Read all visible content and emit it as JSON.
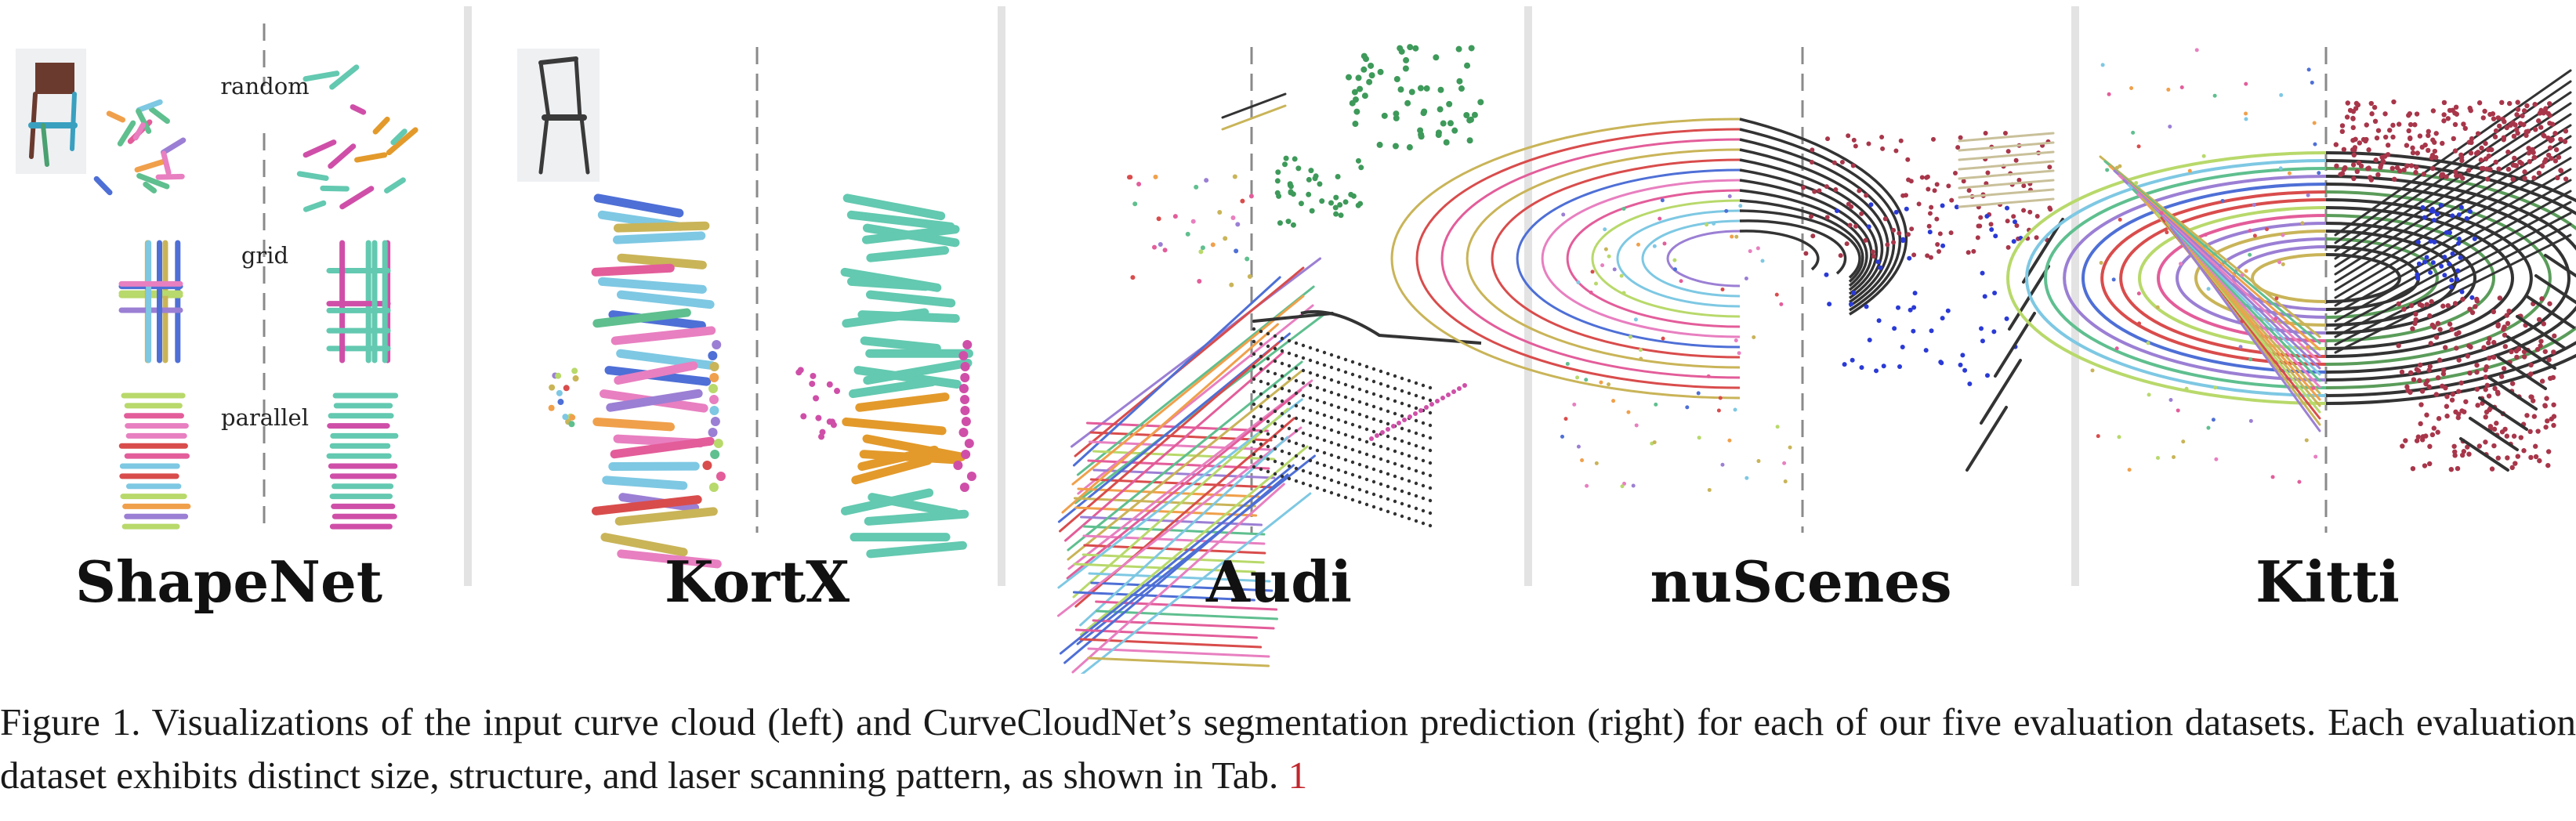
{
  "figure": {
    "datasets": [
      {
        "key": "shapenet",
        "label": "ShapeNet"
      },
      {
        "key": "kortx",
        "label": "KortX"
      },
      {
        "key": "audi",
        "label": "Audi"
      },
      {
        "key": "nuscenes",
        "label": "nuScenes"
      },
      {
        "key": "kitti",
        "label": "Kitti"
      }
    ],
    "shapenet_methods": [
      "random",
      "grid",
      "parallel"
    ]
  },
  "caption": {
    "prefix": "Figure 1. Visualizations of the input curve cloud (left) and CurveCloudNet’s segmentation prediction (right) for each of our five evaluation datasets. Each evaluation dataset exhibits distinct size, structure, and laser scanning pattern, as shown in Tab.",
    "ref": "1"
  },
  "palette": {
    "divider": "#e3e3e3",
    "dash": "#8a8a8a",
    "curves": [
      "#e35d9a",
      "#7ec8e3",
      "#b8d96b",
      "#9b7fd4",
      "#f0a04b",
      "#5fbf8f",
      "#d94c4c",
      "#4e6fd6",
      "#c9b458",
      "#e87fc0"
    ],
    "teal": "#63c9b0",
    "orange": "#e39a2b",
    "magenta": "#cf4fa8",
    "green": "#3e9a5a",
    "maroon": "#a8364a",
    "blue": "#2a3ad6",
    "dark": "#333333",
    "chair_brown": "#6b3a2e",
    "chair_dark": "#3a3a3a"
  }
}
